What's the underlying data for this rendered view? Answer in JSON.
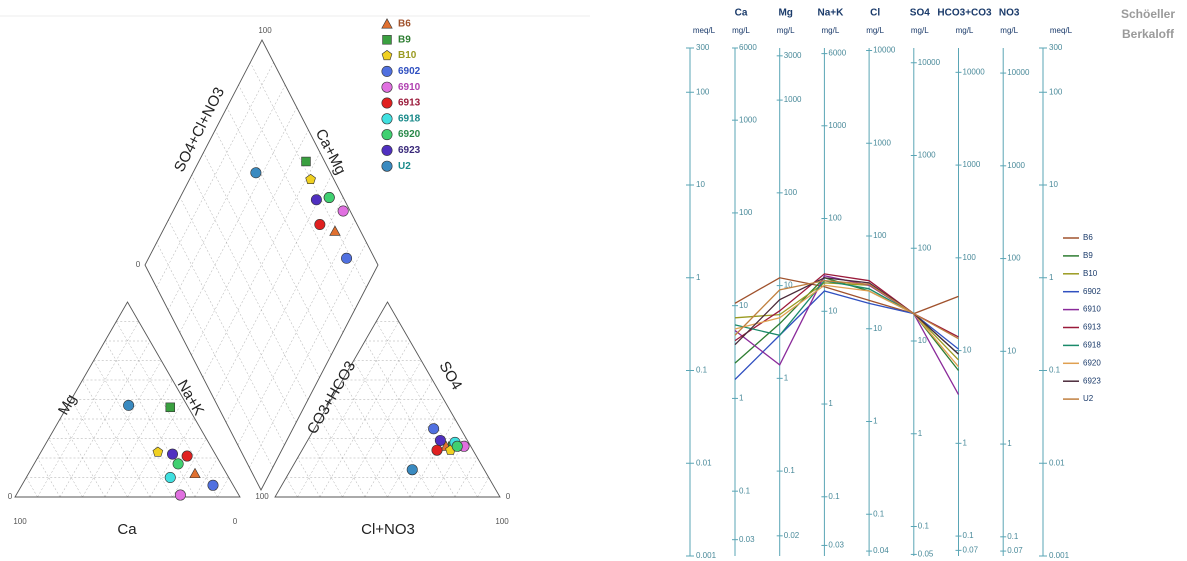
{
  "chart_data": [
    {
      "type": "piper",
      "axis_labels": {
        "so4_cl": "SO4+Cl+NO3",
        "ca_mg": "Ca+Mg",
        "mg": "Mg",
        "na_k": "Na+K",
        "ca": "Ca",
        "hco3": "CO3+HCO3",
        "so4": "SO4",
        "cl": "Cl+NO3"
      },
      "ticks": [
        0,
        100
      ],
      "grid": true,
      "series": [
        {
          "name": "B6",
          "color": "#e07030",
          "legend_text_color": "#a0522d",
          "marker": "triangle",
          "cations": {
            "ca": 14,
            "mg": 12,
            "na_k": 74
          },
          "anions": {
            "hco3": 11,
            "so4": 26,
            "cl": 63
          }
        },
        {
          "name": "B9",
          "color": "#3aa040",
          "legend_text_color": "#2e7d32",
          "marker": "square",
          "cations": {
            "ca": 8,
            "mg": 46,
            "na_k": 46
          },
          "anions": {
            "hco3": 8,
            "so4": 26,
            "cl": 66
          }
        },
        {
          "name": "B10",
          "color": "#f0d020",
          "legend_text_color": "#9a9a20",
          "marker": "pentagon",
          "cations": {
            "ca": 25,
            "mg": 23,
            "na_k": 52
          },
          "anions": {
            "hco3": 10,
            "so4": 24,
            "cl": 66
          }
        },
        {
          "name": "6902",
          "color": "#5070e0",
          "legend_text_color": "#3050c0",
          "marker": "circle",
          "cations": {
            "ca": 9,
            "mg": 6,
            "na_k": 85
          },
          "anions": {
            "hco3": 12,
            "so4": 35,
            "cl": 53
          }
        },
        {
          "name": "6910",
          "color": "#e070e0",
          "legend_text_color": "#b040b0",
          "marker": "circle",
          "cations": {
            "ca": 26,
            "mg": 1,
            "na_k": 73
          },
          "anions": {
            "hco3": 3,
            "so4": 26,
            "cl": 71
          }
        },
        {
          "name": "6913",
          "color": "#e02020",
          "legend_text_color": "#9a1a3a",
          "marker": "circle",
          "cations": {
            "ca": 13,
            "mg": 21,
            "na_k": 66
          },
          "anions": {
            "hco3": 16,
            "so4": 24,
            "cl": 60
          }
        },
        {
          "name": "6918",
          "color": "#40e0e0",
          "legend_text_color": "#1a8a8a",
          "marker": "circle",
          "cations": {
            "ca": 26,
            "mg": 10,
            "na_k": 64
          },
          "anions": {
            "hco3": 6,
            "so4": 28,
            "cl": 66
          }
        },
        {
          "name": "6920",
          "color": "#40d070",
          "legend_text_color": "#2a8a4a",
          "marker": "circle",
          "cations": {
            "ca": 19,
            "mg": 17,
            "na_k": 64
          },
          "anions": {
            "hco3": 6,
            "so4": 26,
            "cl": 68
          }
        },
        {
          "name": "6923",
          "color": "#5030c0",
          "legend_text_color": "#3a2a7a",
          "marker": "circle",
          "cations": {
            "ca": 19,
            "mg": 22,
            "na_k": 59
          },
          "anions": {
            "hco3": 12,
            "so4": 29,
            "cl": 59
          }
        },
        {
          "name": "U2",
          "color": "#3a8ac0",
          "legend_text_color": "#1a8a8a",
          "marker": "circle",
          "cations": {
            "ca": 26,
            "mg": 47,
            "na_k": 27
          },
          "anions": {
            "hco3": 32,
            "so4": 14,
            "cl": 54
          }
        }
      ]
    },
    {
      "type": "schoeller",
      "title": "Schöeller",
      "subtitle": "Berkaloff",
      "value_axis_label": "meq/L",
      "log_scale": true,
      "ylim": [
        0.001,
        300
      ],
      "yticks": [
        300,
        100,
        10,
        1,
        0.1,
        0.01,
        0.001
      ],
      "categories": [
        "Ca",
        "Mg",
        "Na+K",
        "Cl",
        "SO4",
        "HCO3+CO3",
        "NO3"
      ],
      "unit_labels": [
        "mg/L",
        "mg/L",
        "mg/L",
        "mg/L",
        "mg/L",
        "mg/L",
        "mg/L"
      ],
      "category_ticks": [
        [
          {
            "value": 300,
            "label": "6000"
          },
          {
            "value": 50,
            "label": "1000"
          },
          {
            "value": 5,
            "label": "100"
          },
          {
            "value": 0.5,
            "label": "10"
          },
          {
            "value": 0.05,
            "label": "1"
          },
          {
            "value": 0.005,
            "label": "0.1"
          },
          {
            "value": 0.0015,
            "label": "0.03"
          }
        ],
        [
          {
            "value": 247,
            "label": "3000"
          },
          {
            "value": 82.3,
            "label": "1000"
          },
          {
            "value": 8.23,
            "label": "100"
          },
          {
            "value": 0.823,
            "label": "10"
          },
          {
            "value": 0.0823,
            "label": "1"
          },
          {
            "value": 0.00823,
            "label": "0.1"
          },
          {
            "value": 0.00165,
            "label": "0.02"
          }
        ],
        [
          {
            "value": 261,
            "label": "6000"
          },
          {
            "value": 43.5,
            "label": "1000"
          },
          {
            "value": 4.35,
            "label": "100"
          },
          {
            "value": 0.435,
            "label": "10"
          },
          {
            "value": 0.0435,
            "label": "1"
          },
          {
            "value": 0.00435,
            "label": "0.1"
          },
          {
            "value": 0.0013,
            "label": "0.03"
          }
        ],
        [
          {
            "value": 282,
            "label": "10000"
          },
          {
            "value": 28.2,
            "label": "1000"
          },
          {
            "value": 2.82,
            "label": "100"
          },
          {
            "value": 0.282,
            "label": "10"
          },
          {
            "value": 0.0282,
            "label": "1"
          },
          {
            "value": 0.00282,
            "label": "0.1"
          },
          {
            "value": 0.00113,
            "label": "0.04"
          }
        ],
        [
          {
            "value": 208,
            "label": "10000"
          },
          {
            "value": 20.8,
            "label": "1000"
          },
          {
            "value": 2.08,
            "label": "100"
          },
          {
            "value": 0.208,
            "label": "10"
          },
          {
            "value": 0.0208,
            "label": "1"
          },
          {
            "value": 0.00208,
            "label": "0.1"
          },
          {
            "value": 0.00104,
            "label": "0.05"
          }
        ],
        [
          {
            "value": 164,
            "label": "10000"
          },
          {
            "value": 16.4,
            "label": "1000"
          },
          {
            "value": 1.64,
            "label": "100"
          },
          {
            "value": 0.164,
            "label": "10"
          },
          {
            "value": 0.0164,
            "label": "1"
          },
          {
            "value": 0.00164,
            "label": "0.1"
          },
          {
            "value": 0.00115,
            "label": "0.07"
          }
        ],
        [
          {
            "value": 161,
            "label": "10000"
          },
          {
            "value": 16.1,
            "label": "1000"
          },
          {
            "value": 1.61,
            "label": "100"
          },
          {
            "value": 0.161,
            "label": "10"
          },
          {
            "value": 0.0161,
            "label": "1"
          },
          {
            "value": 0.00161,
            "label": "0.1"
          },
          {
            "value": 0.00113,
            "label": "0.07"
          }
        ]
      ],
      "series": [
        {
          "name": "B6",
          "color": "#a0522d",
          "values": [
            0.53,
            1.0,
            0.8,
            0.57,
            0.41,
            0.63,
            null
          ]
        },
        {
          "name": "B9",
          "color": "#2e7d32",
          "values": [
            0.12,
            0.32,
            1.0,
            0.72,
            0.41,
            0.1,
            null
          ]
        },
        {
          "name": "B10",
          "color": "#9a9a20",
          "values": [
            0.37,
            0.4,
            0.88,
            0.83,
            0.41,
            0.13,
            null
          ]
        },
        {
          "name": "6902",
          "color": "#3050c0",
          "values": [
            0.08,
            0.24,
            0.72,
            0.53,
            0.41,
            0.17,
            null
          ]
        },
        {
          "name": "6910",
          "color": "#8a2a9a",
          "values": [
            0.27,
            0.115,
            1.05,
            0.83,
            0.41,
            0.055,
            null
          ]
        },
        {
          "name": "6913",
          "color": "#9a1a3a",
          "values": [
            0.21,
            0.44,
            1.1,
            0.93,
            0.41,
            0.23,
            null
          ]
        },
        {
          "name": "6918",
          "color": "#1a8a6a",
          "values": [
            0.31,
            0.24,
            0.93,
            0.76,
            0.41,
            0.15,
            null
          ]
        },
        {
          "name": "6920",
          "color": "#e0a050",
          "values": [
            0.28,
            0.37,
            0.83,
            0.72,
            0.41,
            0.11,
            null
          ]
        },
        {
          "name": "6923",
          "color": "#4a2a3a",
          "values": [
            0.19,
            0.58,
            1.0,
            0.88,
            0.41,
            0.15,
            null
          ]
        },
        {
          "name": "U2",
          "color": "#c08040",
          "values": [
            0.24,
            0.74,
            0.93,
            0.85,
            0.41,
            0.22,
            null
          ]
        }
      ]
    }
  ]
}
